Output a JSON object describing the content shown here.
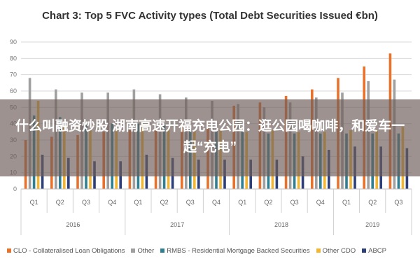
{
  "chart_data": {
    "type": "bar",
    "title": "Chart 3: Top 5 FVC Activity types (Total Debt Securities Issued €bn)",
    "categories": [
      "Q1",
      "Q2",
      "Q3",
      "Q4",
      "Q1",
      "Q2",
      "Q3",
      "Q4",
      "Q1",
      "Q2",
      "Q3",
      "Q4",
      "Q1",
      "Q2",
      "Q3"
    ],
    "groups": [
      {
        "label": "2016",
        "span": 4
      },
      {
        "label": "2017",
        "span": 4
      },
      {
        "label": "2018",
        "span": 4
      },
      {
        "label": "2019",
        "span": 3
      }
    ],
    "ylim": [
      0,
      90
    ],
    "yticks": [
      0,
      10,
      20,
      30,
      40,
      50,
      60,
      70,
      80,
      90
    ],
    "grid": true,
    "legend_position": "bottom",
    "series": [
      {
        "name": "CLO - Collateralised Loan Obligations",
        "color": "#e8722c",
        "values": [
          30,
          32,
          33,
          35,
          36,
          37,
          39,
          41,
          51,
          53,
          57,
          61,
          68,
          75,
          83
        ]
      },
      {
        "name": "Other",
        "color": "#a0a0a0",
        "values": [
          68,
          61,
          59,
          59,
          61,
          58,
          56,
          54,
          52,
          50,
          53,
          56,
          59,
          66,
          67
        ]
      },
      {
        "name": "RMBS - Residential Mortgage Backed Securities",
        "color": "#2f7f93",
        "values": [
          45,
          44,
          40,
          40,
          40,
          39,
          37,
          36,
          35,
          34,
          34,
          34,
          34,
          34,
          34
        ]
      },
      {
        "name": "Other CDO",
        "color": "#f2b632",
        "values": [
          54,
          38,
          36,
          36,
          38,
          37,
          36,
          36,
          35,
          36,
          35,
          35,
          36,
          36,
          38
        ]
      },
      {
        "name": "ABCP",
        "color": "#2c3f7a",
        "values": [
          21,
          19,
          17,
          17,
          21,
          19,
          18,
          18,
          18,
          18,
          20,
          24,
          26,
          26,
          25
        ]
      }
    ]
  },
  "overlay": {
    "text": "什么叫融资炒股 湖南高速开福充电公园：逛公园喝咖啡，和爱车一起“充电”"
  }
}
